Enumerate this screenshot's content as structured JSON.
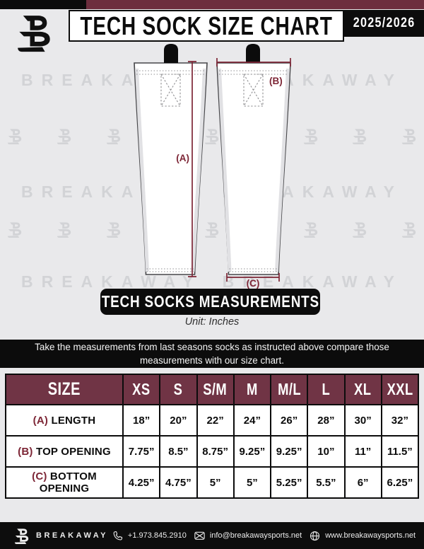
{
  "header": {
    "title": "TECH SOCK SIZE CHART",
    "season": "2025/2026"
  },
  "watermark": {
    "word": "BREAKAWAY"
  },
  "diagram": {
    "banner": "TECH SOCKS MEASUREMENTS",
    "unit": "Unit: Inches",
    "labels": {
      "a": "(A)",
      "b": "(B)",
      "c": "(C)"
    }
  },
  "instructions": {
    "line1": "Take the measurements from last seasons socks as instructed above compare those",
    "line2": "measurements  with our size chart."
  },
  "table": {
    "columns": [
      "SIZE",
      "XS",
      "S",
      "S/M",
      "M",
      "M/L",
      "L",
      "XL",
      "XXL"
    ],
    "rows": [
      {
        "prefix": "(A)",
        "label": "LENGTH",
        "values": [
          "18”",
          "20”",
          "22”",
          "24”",
          "26”",
          "28”",
          "30”",
          "32”"
        ]
      },
      {
        "prefix": "(B)",
        "label": "TOP OPENING",
        "values": [
          "7.75”",
          "8.5”",
          "8.75”",
          "9.25”",
          "9.25”",
          "10”",
          "11”",
          "11.5”"
        ]
      },
      {
        "prefix": "(C)",
        "label": "BOTTOM OPENING",
        "values": [
          "4.25”",
          "4.75”",
          "5”",
          "5”",
          "5.25”",
          "5.5”",
          "6”",
          "6.25”"
        ]
      }
    ]
  },
  "footer": {
    "brand": "BREAKAWAY",
    "phone": "+1.973.845.2910",
    "email": "info@breakawaysports.net",
    "website": "www.breakawaysports.net"
  },
  "colors": {
    "header_bar": "#6d2e3e",
    "table_header": "#703445",
    "measure": "#7d2636",
    "background": "#e9e9eb",
    "ink": "#0c0c0c",
    "watermark_gray": "#d2d3d6"
  }
}
